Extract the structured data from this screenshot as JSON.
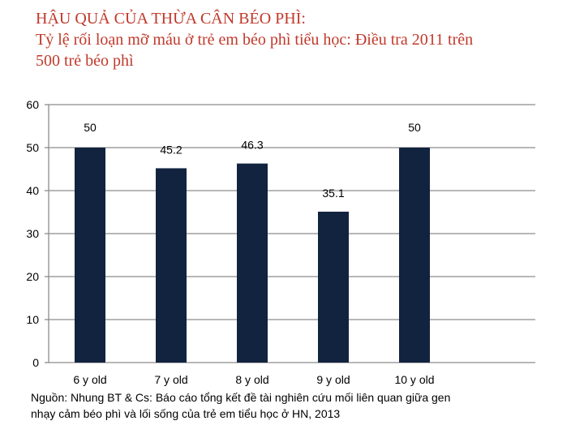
{
  "title": {
    "line1": "HẬU QUẢ CỦA THỪA CÂN BÉO PHÌ:",
    "line2": "Tỷ lệ rối loạn mỡ máu ở trẻ em béo phì tiểu học: Điều tra 2011 trên",
    "line3": "500 trẻ béo phì"
  },
  "source": {
    "line1": "Nguồn: Nhung BT & Cs: Báo cáo tổng kết đề tài nghiên cứu mối liên quan giữa gen",
    "line2": "nhạy cảm béo phì và lối sống  của trẻ em tiểu học ở HN, 2013"
  },
  "colors": {
    "bar": "#12233f",
    "grid": "#8c8c8c",
    "title": "#c0392b"
  },
  "chart_data": {
    "type": "bar",
    "title": "Tỷ lệ rối loạn mỡ máu ở trẻ em béo phì tiểu học: Điều tra 2011 trên 500 trẻ béo phì",
    "categories": [
      "6 y old",
      "7 y old",
      "8 y old",
      "9 y old",
      "10 y old"
    ],
    "values": [
      50,
      45.2,
      46.3,
      35.1,
      50
    ],
    "data_labels": [
      "50",
      "45.2",
      "46.3",
      "35.1",
      "50"
    ],
    "yticks": [
      "0",
      "10",
      "20",
      "30",
      "40",
      "50",
      "60"
    ],
    "ylim": [
      0,
      60
    ],
    "xlabel": "",
    "ylabel": "",
    "grid": true,
    "legend": "none"
  }
}
